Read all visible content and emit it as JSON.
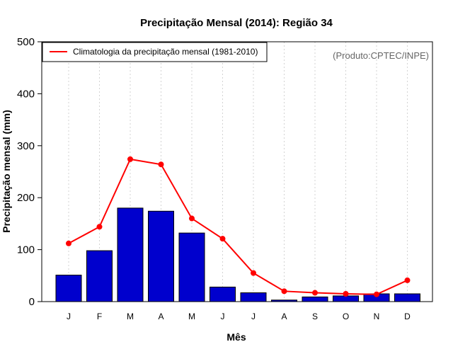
{
  "colors": {
    "bar_fill": "#0000CD",
    "bar_stroke": "#000000",
    "line": "#FF0000",
    "grid": "#D3D3D3",
    "credit": "#666666"
  },
  "credit": "(Produto:CPTEC/INPE)",
  "chart_data": {
    "type": "bar",
    "title": "Precipitação Mensal (2014): Região 34",
    "xlabel": "Mês",
    "ylabel": "Precipitação mensal (mm)",
    "ylim": [
      0,
      500
    ],
    "yticks": [
      0,
      100,
      200,
      300,
      400,
      500
    ],
    "grid": true,
    "legend_position": "top-left",
    "categories": [
      "J",
      "F",
      "M",
      "A",
      "M",
      "J",
      "J",
      "A",
      "S",
      "O",
      "N",
      "D"
    ],
    "series": [
      {
        "name": "Precipitação mensal (2014)",
        "type": "bar",
        "values": [
          51,
          98,
          180,
          174,
          132,
          28,
          17,
          3,
          9,
          11,
          15,
          15
        ]
      },
      {
        "name": "Climatologia da precipitação mensal (1981-2010)",
        "type": "line",
        "values": [
          112,
          144,
          274,
          264,
          160,
          121,
          55,
          20,
          17,
          15,
          14,
          41
        ]
      }
    ]
  }
}
